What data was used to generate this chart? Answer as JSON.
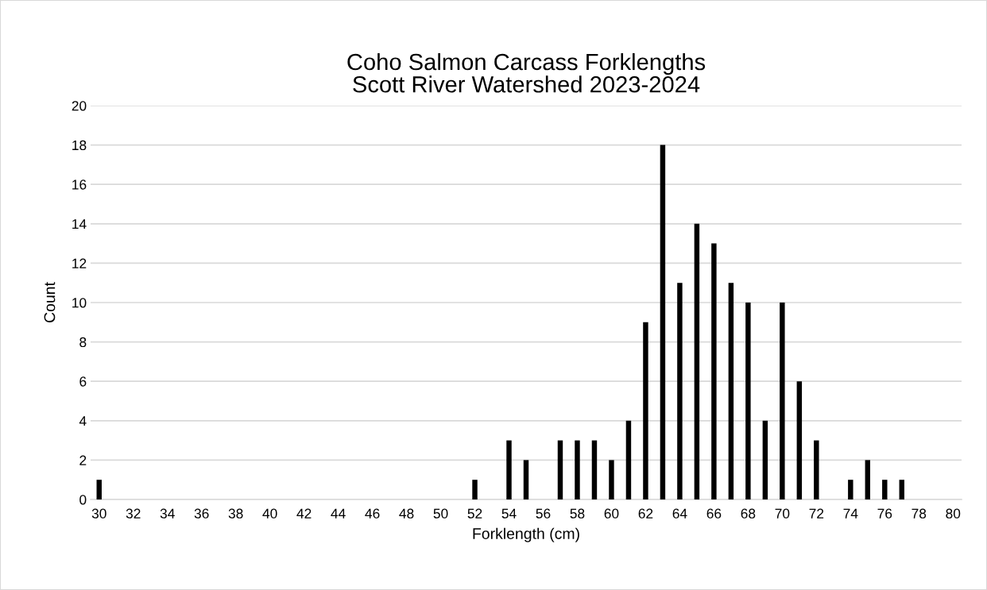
{
  "chart_data": {
    "type": "bar",
    "title": "Coho Salmon Carcass Forklengths\nScott River Watershed 2023-2024",
    "xlabel": "Forklength (cm)",
    "ylabel": "Count",
    "categories": [
      "30",
      null,
      "32",
      null,
      "34",
      null,
      "36",
      null,
      "38",
      null,
      "40",
      null,
      "42",
      null,
      "44",
      null,
      "46",
      null,
      "48",
      null,
      "50",
      null,
      "52",
      null,
      "54",
      null,
      "56",
      null,
      "58",
      null,
      "60",
      null,
      "62",
      null,
      "64",
      null,
      "66",
      null,
      "68",
      null,
      "70",
      null,
      "72",
      null,
      "74",
      null,
      "76",
      null,
      "78",
      null,
      "80"
    ],
    "values": [
      1,
      0,
      0,
      0,
      0,
      0,
      0,
      0,
      0,
      0,
      0,
      0,
      0,
      0,
      0,
      0,
      0,
      0,
      0,
      0,
      0,
      0,
      1,
      0,
      3,
      2,
      0,
      3,
      3,
      3,
      2,
      4,
      9,
      18,
      11,
      14,
      13,
      11,
      10,
      4,
      10,
      6,
      3,
      0,
      1,
      2,
      1,
      1,
      0,
      0,
      0
    ],
    "color": "#000000",
    "ylim": [
      0,
      20
    ],
    "yticks": [
      0,
      2,
      4,
      6,
      8,
      10,
      12,
      14,
      16,
      18,
      20
    ],
    "grid": "y",
    "legend": false
  }
}
